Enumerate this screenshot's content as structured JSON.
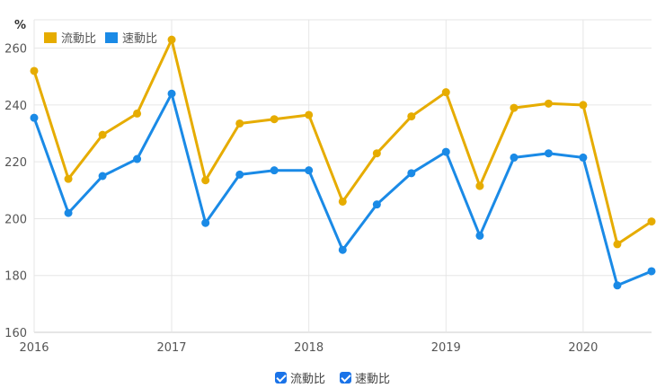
{
  "chart_data": {
    "type": "line",
    "unit_label": "%",
    "x": [
      "2016-01",
      "2016-04",
      "2016-07",
      "2016-10",
      "2017-01",
      "2017-04",
      "2017-07",
      "2017-10",
      "2018-01",
      "2018-04",
      "2018-07",
      "2018-10",
      "2019-01",
      "2019-04",
      "2019-07",
      "2019-10",
      "2020-01",
      "2020-04",
      "2020-07"
    ],
    "xticks": [
      "2016",
      "2017",
      "2018",
      "2019",
      "2020"
    ],
    "yticks": [
      160,
      180,
      200,
      220,
      240,
      260
    ],
    "ylim": [
      160,
      270
    ],
    "grid": true,
    "legend_position": "top-left",
    "series": [
      {
        "name": "流動比",
        "color": "#e6ac00",
        "values": [
          252,
          214,
          229.5,
          237,
          263,
          213.5,
          233.5,
          235,
          236.5,
          206,
          223,
          236,
          244.5,
          211.5,
          239,
          240.5,
          240,
          191,
          199
        ]
      },
      {
        "name": "速動比",
        "color": "#1a8ae6",
        "values": [
          235.5,
          202,
          215,
          221,
          244,
          198.5,
          215.5,
          217,
          217,
          189,
          205,
          216,
          223.5,
          194,
          221.5,
          223,
          221.5,
          176.5,
          181.5
        ]
      }
    ]
  }
}
